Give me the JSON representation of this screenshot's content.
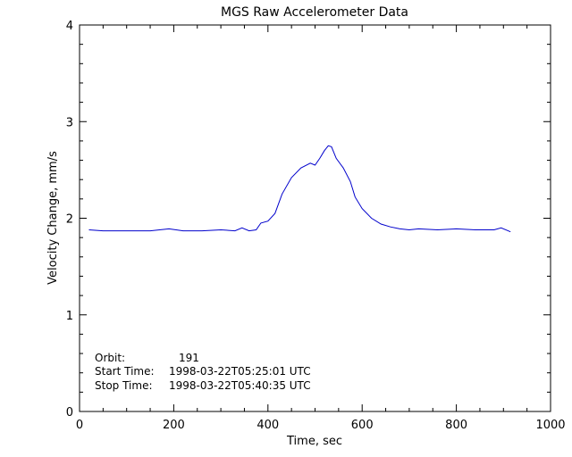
{
  "chart_data": {
    "type": "line",
    "title": "MGS Raw Accelerometer Data",
    "xlabel": "Time, sec",
    "ylabel": "Velocity Change, mm/s",
    "xlim": [
      0,
      1000
    ],
    "ylim": [
      0,
      4
    ],
    "x_ticks": [
      "0",
      "200",
      "400",
      "600",
      "800",
      "1000"
    ],
    "y_ticks": [
      "0",
      "1",
      "2",
      "3",
      "4"
    ],
    "grid": false,
    "line_color": "#0000cc",
    "annotations": {
      "orbit_label": "Orbit:",
      "orbit_value": "191",
      "start_label": "Start Time:",
      "start_value": "1998-03-22T05:25:01 UTC",
      "stop_label": "Stop Time:",
      "stop_value": "1998-03-22T05:40:35 UTC"
    },
    "series": [
      {
        "x": [
          20,
          50,
          100,
          150,
          190,
          220,
          260,
          300,
          330,
          345,
          360,
          375,
          385,
          400,
          415,
          430,
          450,
          470,
          490,
          500,
          510,
          520,
          528,
          535,
          545,
          560,
          575,
          585,
          600,
          620,
          640,
          660,
          680,
          700,
          720,
          760,
          800,
          840,
          880,
          895,
          915
        ],
        "y": [
          1.88,
          1.87,
          1.87,
          1.87,
          1.89,
          1.87,
          1.87,
          1.88,
          1.87,
          1.9,
          1.87,
          1.88,
          1.95,
          1.97,
          2.05,
          2.25,
          2.42,
          2.52,
          2.57,
          2.55,
          2.62,
          2.7,
          2.75,
          2.74,
          2.62,
          2.52,
          2.38,
          2.22,
          2.1,
          2.0,
          1.94,
          1.91,
          1.89,
          1.88,
          1.89,
          1.88,
          1.89,
          1.88,
          1.88,
          1.9,
          1.86
        ]
      }
    ]
  }
}
